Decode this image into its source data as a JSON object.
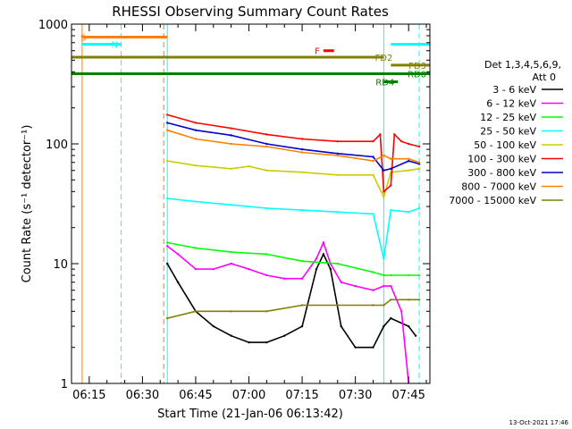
{
  "chart_data": {
    "type": "line",
    "title": "RHESSI Observing Summary Count Rates",
    "xlabel": "Start Time (21-Jan-06 06:13:42)",
    "ylabel": "Count Rate (s⁻¹ detector⁻¹)",
    "y_scale": "log",
    "ylim": [
      1,
      1000
    ],
    "xlim": [
      "06:10",
      "07:51"
    ],
    "x_tick_labels": [
      "06:15",
      "06:30",
      "06:45",
      "07:00",
      "07:15",
      "07:30",
      "07:45"
    ],
    "y_tick_labels": [
      "1",
      "10",
      "100",
      "1000"
    ],
    "footer": "13-Oct-2021 17:46",
    "legend": {
      "header_line1": "Det 1,3,4,5,6,9,",
      "header_line2": "Att 0",
      "placement": "right"
    },
    "series": [
      {
        "name": "3 - 6 keV",
        "color": "#000000",
        "x": [
          "06:37",
          "06:40",
          "06:45",
          "06:50",
          "06:55",
          "07:00",
          "07:05",
          "07:10",
          "07:15",
          "07:19",
          "07:21",
          "07:23",
          "07:26",
          "07:30",
          "07:35",
          "07:38",
          "07:40",
          "07:45",
          "07:47"
        ],
        "y": [
          10,
          7,
          4,
          3,
          2.5,
          2.2,
          2.2,
          2.5,
          3,
          9,
          12,
          9,
          3,
          2,
          2,
          3,
          3.5,
          3,
          2.5
        ]
      },
      {
        "name": "6 - 12 keV",
        "color": "#ff00ff",
        "x": [
          "06:37",
          "06:40",
          "06:45",
          "06:50",
          "06:55",
          "07:00",
          "07:05",
          "07:10",
          "07:15",
          "07:19",
          "07:21",
          "07:23",
          "07:26",
          "07:30",
          "07:35",
          "07:38",
          "07:40",
          "07:43",
          "07:45"
        ],
        "y": [
          14,
          12,
          9,
          9,
          10,
          9,
          8,
          7.5,
          7.5,
          11,
          15,
          10,
          7,
          6.5,
          6,
          6.5,
          6.5,
          4,
          1
        ]
      },
      {
        "name": "12 - 25 keV",
        "color": "#00ff00",
        "x": [
          "06:37",
          "06:45",
          "06:55",
          "07:05",
          "07:15",
          "07:25",
          "07:35",
          "07:38",
          "07:40",
          "07:45",
          "07:48"
        ],
        "y": [
          15,
          13.5,
          12.5,
          12,
          10.5,
          10,
          8.5,
          8,
          8,
          8,
          8
        ]
      },
      {
        "name": "25 - 50 keV",
        "color": "#00ffff",
        "x": [
          "06:37",
          "06:45",
          "06:55",
          "07:05",
          "07:15",
          "07:25",
          "07:35",
          "07:38",
          "07:40",
          "07:45",
          "07:48"
        ],
        "y": [
          35,
          33,
          31,
          29,
          28,
          27,
          26,
          11,
          28,
          27,
          29
        ]
      },
      {
        "name": "50 - 100 keV",
        "color": "#cccc00",
        "x": [
          "06:37",
          "06:45",
          "06:55",
          "07:00",
          "07:05",
          "07:15",
          "07:25",
          "07:35",
          "07:38",
          "07:40",
          "07:45",
          "07:48"
        ],
        "y": [
          72,
          66,
          62,
          65,
          60,
          58,
          55,
          55,
          36,
          58,
          60,
          62
        ]
      },
      {
        "name": "100 - 300 keV",
        "color": "#ff0000",
        "x": [
          "06:37",
          "06:45",
          "06:55",
          "07:05",
          "07:15",
          "07:25",
          "07:35",
          "07:37",
          "07:38",
          "07:40",
          "07:41",
          "07:43",
          "07:45",
          "07:48"
        ],
        "y": [
          175,
          150,
          135,
          120,
          110,
          105,
          105,
          120,
          40,
          45,
          120,
          105,
          100,
          95
        ]
      },
      {
        "name": "300 - 800 keV",
        "color": "#0000cc",
        "x": [
          "06:37",
          "06:45",
          "06:55",
          "07:05",
          "07:15",
          "07:25",
          "07:35",
          "07:38",
          "07:40",
          "07:45",
          "07:48"
        ],
        "y": [
          150,
          130,
          118,
          100,
          90,
          83,
          78,
          60,
          62,
          72,
          68
        ]
      },
      {
        "name": "800 - 7000 keV",
        "color": "#ff8000",
        "x": [
          "06:37",
          "06:45",
          "06:55",
          "07:05",
          "07:15",
          "07:25",
          "07:35",
          "07:38",
          "07:40",
          "07:45",
          "07:48"
        ],
        "y": [
          130,
          110,
          100,
          95,
          85,
          80,
          72,
          80,
          75,
          75,
          70
        ]
      },
      {
        "name": "7000 - 15000 keV",
        "color": "#808000",
        "x": [
          "06:37",
          "06:45",
          "06:55",
          "07:05",
          "07:15",
          "07:25",
          "07:35",
          "07:38",
          "07:40",
          "07:45",
          "07:48"
        ],
        "y": [
          3.5,
          4,
          4,
          4,
          4.5,
          4.5,
          4.5,
          4.5,
          5,
          5,
          5
        ]
      }
    ],
    "flag_bars": [
      {
        "label": "S",
        "color": "#ff8000",
        "x_start": "06:13",
        "x_end": "06:37",
        "level": 780
      },
      {
        "label": "N",
        "color": "#00ffff",
        "x_start": "06:13",
        "x_end": "06:24",
        "level": 680
      },
      {
        "label": "F",
        "color": "#ff0000",
        "x_start": "07:21",
        "x_end": "07:24",
        "level": 600
      },
      {
        "label": "FD2",
        "color": "#808000",
        "x_start": "06:10",
        "x_end": "07:38",
        "level": 530
      },
      {
        "label": "FD3",
        "color": "#808000",
        "x_start": "07:40",
        "x_end": "07:51",
        "level": 455
      },
      {
        "label": "RD0",
        "color": "#008000",
        "x_start": "06:10",
        "x_end": "07:51",
        "level": 385
      },
      {
        "label": "RD4",
        "color": "#008000",
        "x_start": "07:38",
        "x_end": "07:42",
        "level": 330
      },
      {
        "label": "",
        "color": "#00ffff",
        "x_start": "07:40",
        "x_end": "07:51",
        "level": 680
      }
    ],
    "vertical_lines": [
      {
        "x": "06:10",
        "color": "#00ffff",
        "style": "solid"
      },
      {
        "x": "06:13",
        "color": "#ff8000",
        "style": "solid"
      },
      {
        "x": "06:24",
        "color": "#00ffff",
        "style": "dashed"
      },
      {
        "x": "06:36",
        "color": "#ff8000",
        "style": "dashed"
      },
      {
        "x": "06:37",
        "color": "#00ffff",
        "style": "solid"
      },
      {
        "x": "07:38",
        "color": "#00ffff",
        "style": "solid"
      },
      {
        "x": "07:48",
        "color": "#00ffff",
        "style": "dashed"
      }
    ]
  }
}
